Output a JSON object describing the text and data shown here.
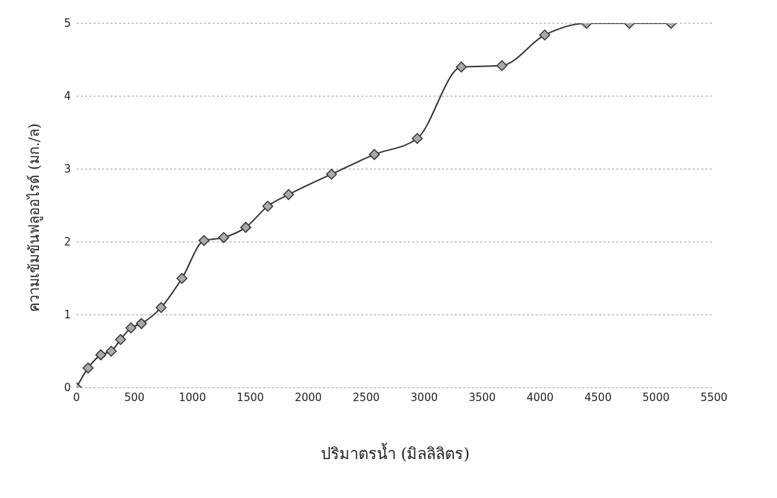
{
  "chart_data": {
    "type": "line",
    "xlabel": "ปริมาตรน้ำ (มิลลิลิตร)",
    "ylabel": "ความเข้มข้นฟลูออไรด์ (มก./ล)",
    "x": [
      0,
      100,
      210,
      300,
      380,
      470,
      560,
      730,
      910,
      1100,
      1270,
      1460,
      1650,
      1830,
      2200,
      2570,
      2940,
      3320,
      3670,
      4040,
      4400,
      4770,
      5130
    ],
    "series": [
      {
        "color": "#333333",
        "values": [
          0,
          0.27,
          0.45,
          0.5,
          0.66,
          0.82,
          0.88,
          1.1,
          1.5,
          2.02,
          2.06,
          2.2,
          2.49,
          2.65,
          2.93,
          3.2,
          3.42,
          4.4,
          4.42,
          4.84,
          5,
          5,
          5
        ]
      }
    ],
    "xlim": [
      0,
      5500
    ],
    "xticks": [
      0,
      500,
      1000,
      1500,
      2000,
      2500,
      3000,
      3500,
      4000,
      4500,
      5000,
      5500
    ],
    "ylim": [
      0,
      5
    ],
    "yticks": [
      0,
      1,
      2,
      3,
      4,
      5
    ],
    "grid": "y",
    "marker": "diamond",
    "line_style": "solid",
    "legend": false
  }
}
